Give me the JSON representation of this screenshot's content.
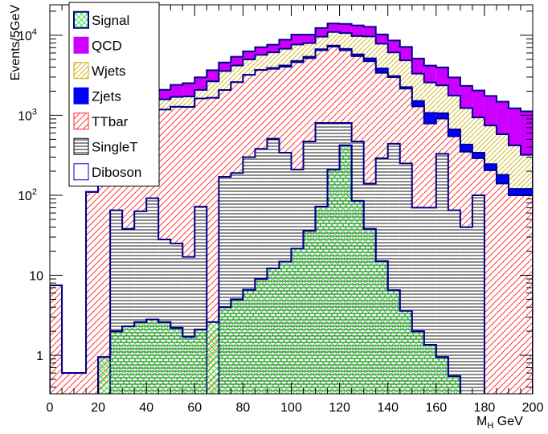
{
  "chart_data": {
    "type": "stacked-histogram",
    "xlabel": "M",
    "xlabel_sub": "H",
    "xlabel_unit": " GeV",
    "ylabel": "Events/5GeV",
    "ylog": true,
    "xlim": [
      0,
      200
    ],
    "ylim": [
      0.33,
      24000
    ],
    "x_ticks": [
      "0",
      "20",
      "40",
      "60",
      "80",
      "100",
      "120",
      "140",
      "160",
      "180",
      "200"
    ],
    "y_ticks": [
      {
        "value": 1,
        "label": "1"
      },
      {
        "value": 10,
        "label": "10"
      },
      {
        "value": 100,
        "label": "10",
        "exp": "2"
      },
      {
        "value": 1000,
        "label": "10",
        "exp": "3"
      },
      {
        "value": 10000,
        "label": "10",
        "exp": "4"
      }
    ],
    "bin_width": 5,
    "bin_edges": [
      0,
      5,
      10,
      15,
      20,
      25,
      30,
      35,
      40,
      45,
      50,
      55,
      60,
      65,
      70,
      75,
      80,
      85,
      90,
      95,
      100,
      105,
      110,
      115,
      120,
      125,
      130,
      135,
      140,
      145,
      150,
      155,
      160,
      165,
      170,
      175,
      180,
      185,
      190,
      195,
      200
    ],
    "stack_order": [
      "SingleT",
      "TTbar",
      "Zjets",
      "Wjets",
      "QCD"
    ],
    "series": [
      {
        "name": "Signal",
        "color": "#00cc00",
        "edge": "#00008b",
        "values": [
          0,
          0,
          0,
          0,
          0.95,
          2.0,
          2.3,
          2.6,
          2.8,
          2.6,
          2.2,
          1.7,
          2.1,
          2.6,
          4.0,
          5.0,
          6.6,
          9.0,
          12.2,
          14.8,
          21.5,
          36.0,
          72.0,
          210,
          420,
          85,
          38,
          15,
          6.5,
          3.6,
          2.0,
          1.35,
          0.95,
          0.55,
          0,
          0,
          0,
          0,
          0,
          0
        ]
      },
      {
        "name": "SingleT",
        "color": "#333333",
        "values": [
          0,
          0,
          0,
          0,
          0,
          65,
          38,
          63,
          92,
          28,
          25,
          17,
          72,
          0,
          170,
          190,
          300,
          380,
          510,
          340,
          210,
          470,
          800,
          800,
          800,
          470,
          140,
          290,
          440,
          250,
          70,
          70,
          330,
          65,
          40,
          100,
          0,
          0,
          0,
          0
        ]
      },
      {
        "name": "TTbar",
        "color": "#ff0000",
        "values": [
          7.5,
          0.6,
          0.6,
          110,
          200,
          330,
          480,
          800,
          1050,
          1150,
          1250,
          1250,
          1550,
          1650,
          1900,
          2400,
          2900,
          3300,
          3300,
          3700,
          4400,
          4700,
          5700,
          6400,
          5700,
          5000,
          4600,
          3100,
          2550,
          1900,
          1220,
          720,
          580,
          480,
          310,
          190,
          205,
          140,
          100,
          100
        ]
      },
      {
        "name": "Zjets",
        "color": "#0000ff",
        "values": [
          0,
          0,
          0,
          0,
          0,
          0,
          0,
          0,
          0,
          0,
          0,
          0,
          0,
          0,
          0,
          0,
          0,
          0,
          100,
          150,
          160,
          210,
          190,
          210,
          250,
          300,
          400,
          450,
          100,
          100,
          220,
          280,
          150,
          120,
          80,
          50,
          40,
          40,
          20,
          20
        ]
      },
      {
        "name": "Wjets",
        "color": "#ddbb00",
        "values": [
          0,
          0,
          0,
          0,
          15,
          50,
          150,
          220,
          320,
          400,
          420,
          450,
          450,
          1000,
          1500,
          1600,
          1800,
          2000,
          2200,
          2600,
          2900,
          2600,
          2900,
          3600,
          3900,
          4000,
          4500,
          4000,
          3000,
          2600,
          1800,
          1500,
          1300,
          1100,
          800,
          600,
          500,
          400,
          300,
          200
        ]
      },
      {
        "name": "QCD",
        "color": "#cc00ff",
        "values": [
          0,
          0,
          0,
          0,
          30,
          200,
          300,
          450,
          480,
          500,
          700,
          800,
          900,
          1000,
          1000,
          1200,
          1300,
          1400,
          1500,
          2000,
          2500,
          2200,
          2700,
          3000,
          3200,
          3500,
          3100,
          2400,
          2500,
          2300,
          1800,
          1600,
          1600,
          1200,
          1100,
          1100,
          1000,
          900,
          800,
          800
        ]
      },
      {
        "name": "Diboson",
        "color": "#0000cc",
        "values": []
      }
    ],
    "legend": {
      "placement": "top-left",
      "entries": [
        {
          "name": "Signal",
          "swatch": "crosshatch-green"
        },
        {
          "name": "QCD",
          "swatch": "solid-magenta"
        },
        {
          "name": "Wjets",
          "swatch": "hatch-yellow"
        },
        {
          "name": "Zjets",
          "swatch": "solid-blue"
        },
        {
          "name": "TTbar",
          "swatch": "hatch-red"
        },
        {
          "name": "SingleT",
          "swatch": "horizontal-black"
        },
        {
          "name": "Diboson",
          "swatch": "empty-blue"
        }
      ]
    }
  }
}
